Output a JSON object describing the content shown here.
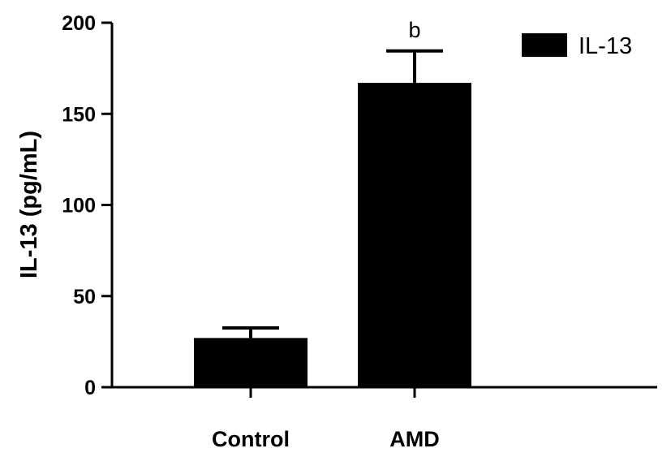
{
  "chart_data": {
    "type": "bar",
    "categories": [
      "Control",
      "AMD"
    ],
    "series": [
      {
        "name": "IL-13",
        "values": [
          27,
          167
        ],
        "error": [
          5.5,
          17.5
        ],
        "annotations": [
          "",
          "b"
        ]
      }
    ],
    "xlabel": "",
    "ylabel": "IL-13 (pg/mL)",
    "ylim": [
      0,
      200
    ],
    "yticks": [
      0,
      50,
      100,
      150,
      200
    ],
    "legend_position": "top-right",
    "grid": false,
    "colors": {
      "bar": "#000000",
      "axis": "#000000"
    }
  }
}
